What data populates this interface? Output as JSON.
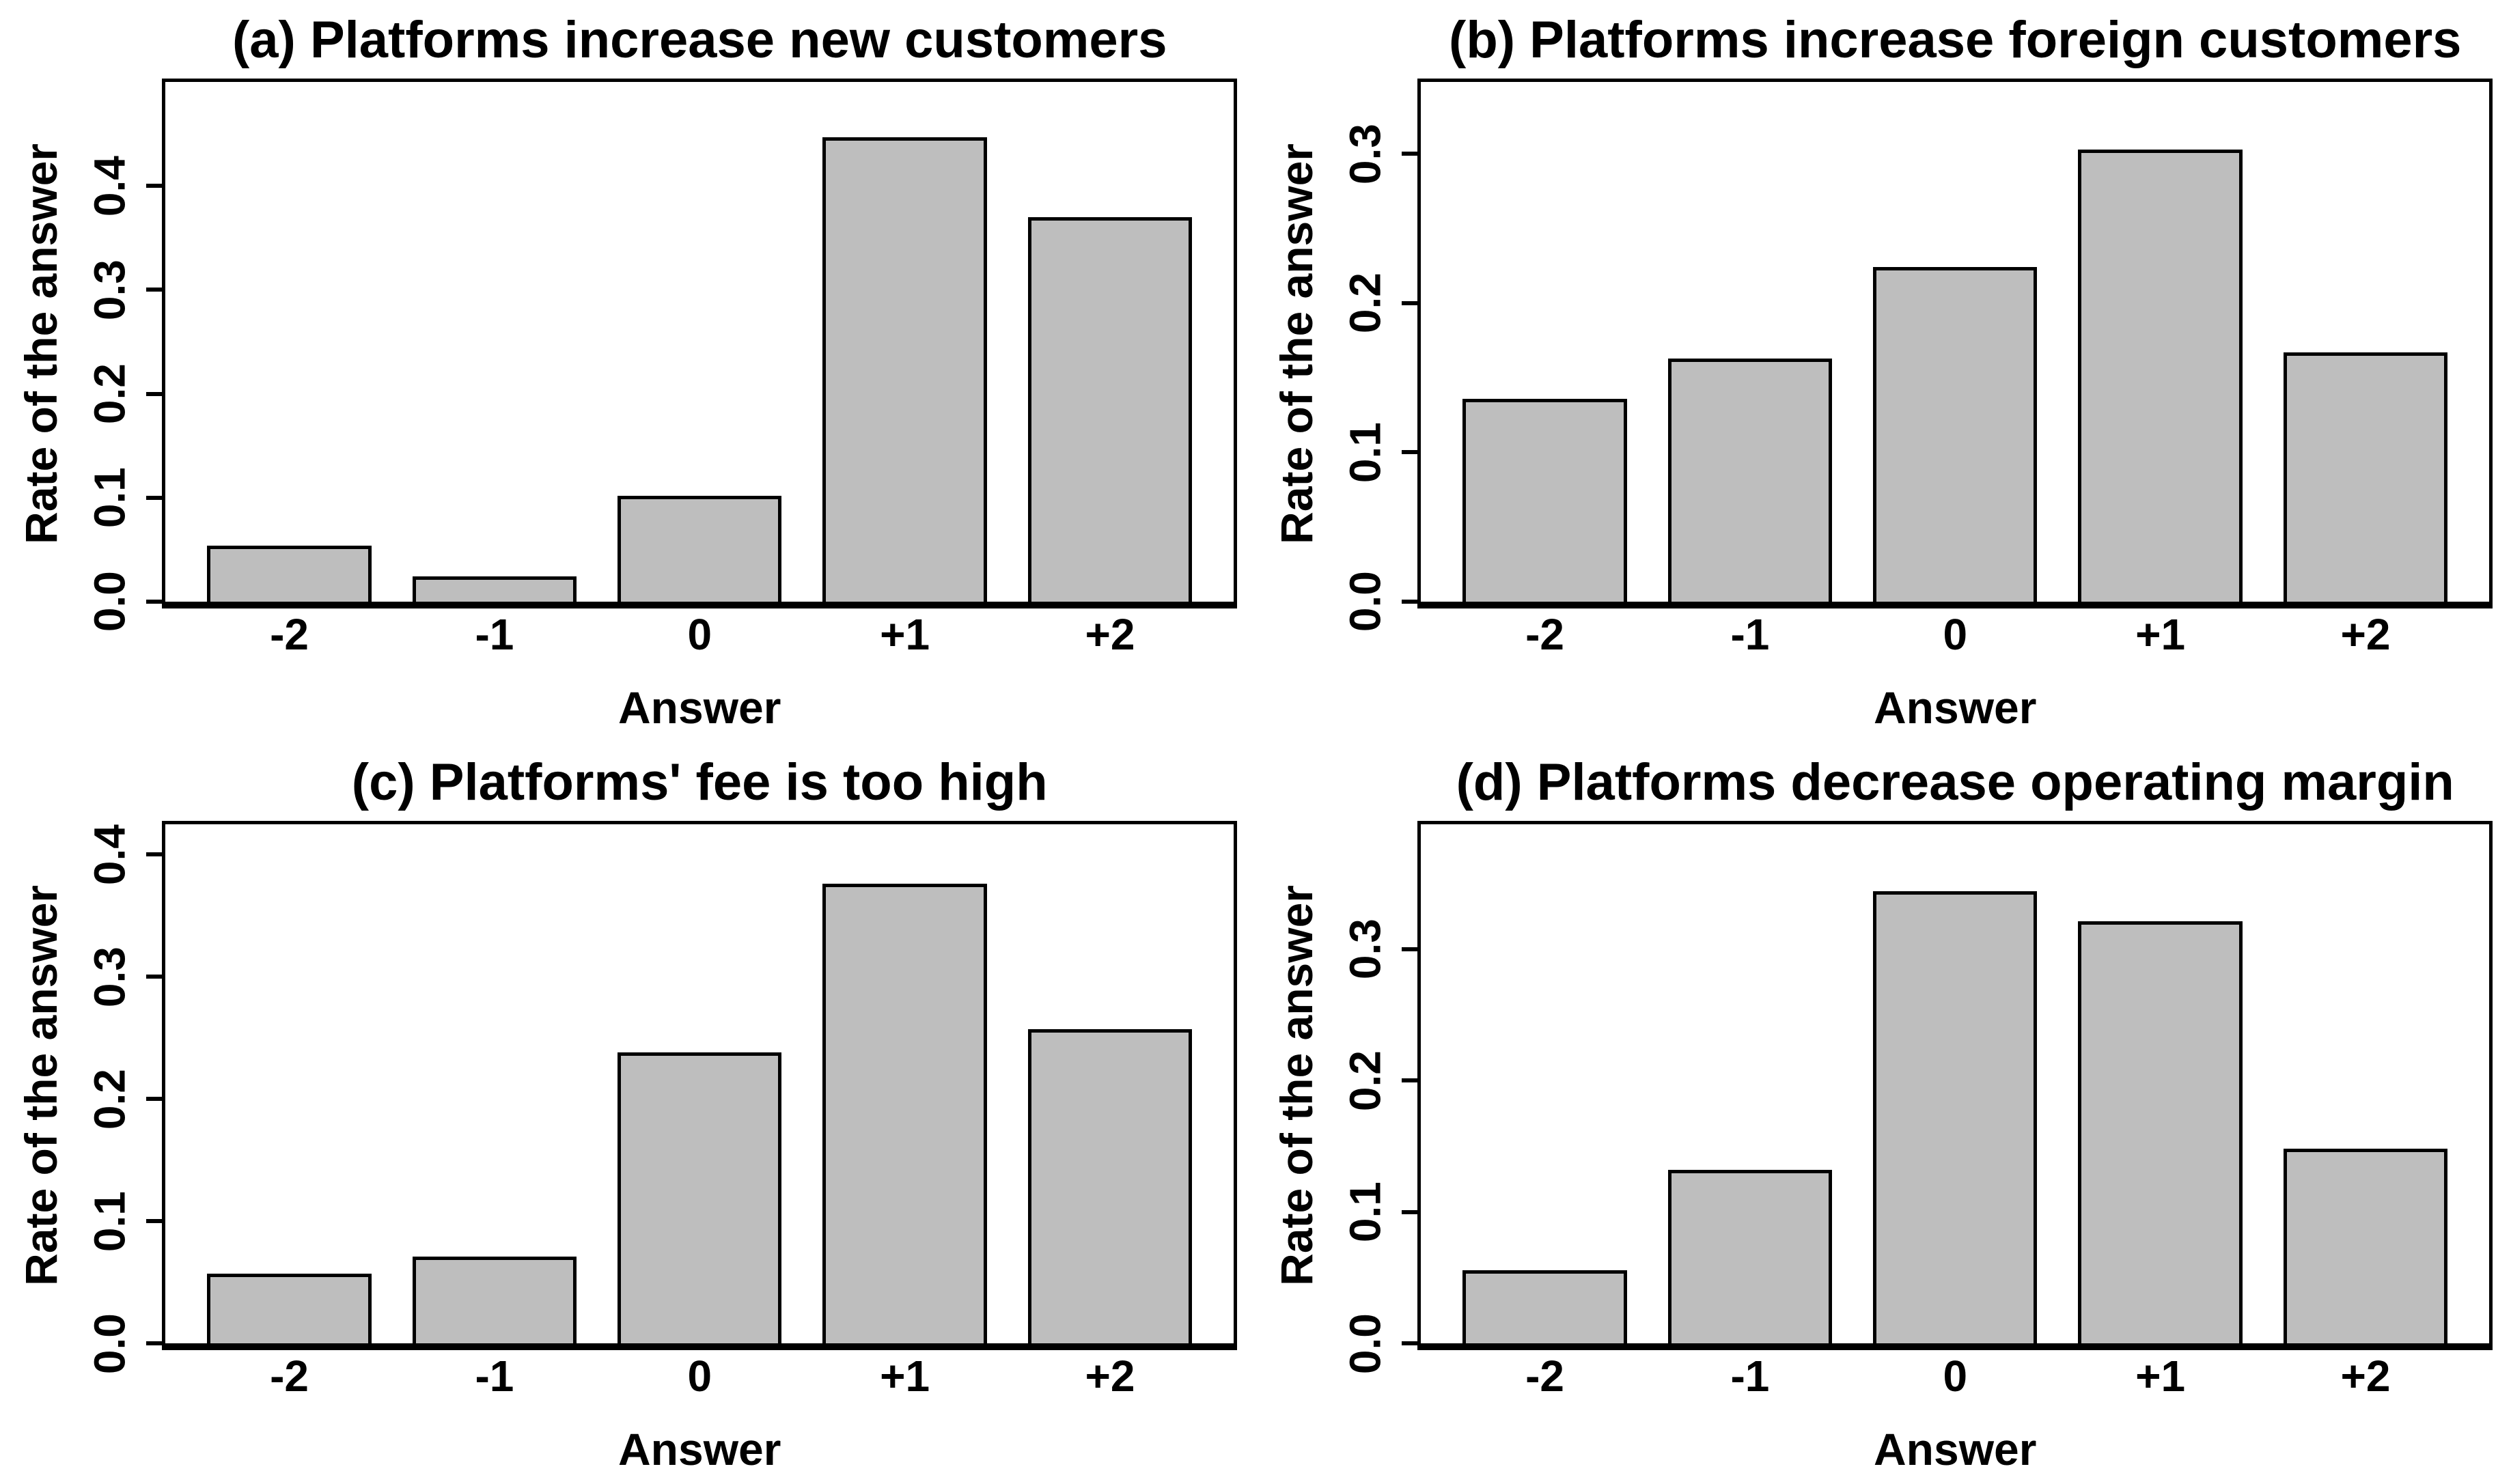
{
  "figure": {
    "background": "#ffffff",
    "text_color": "#000000",
    "bar_fill": "#bebebe",
    "bar_border": "#000000",
    "layout": "2x2-grid",
    "xlabel": "Answer",
    "ylabel": "Rate of the answer",
    "categories": [
      "-2",
      "-1",
      "0",
      "+1",
      "+2"
    ]
  },
  "chart_data": [
    {
      "type": "bar",
      "panel": "a",
      "title": "(a) Platforms increase new customers",
      "xlabel": "Answer",
      "ylabel": "Rate of the answer",
      "categories": [
        "-2",
        "-1",
        "0",
        "+1",
        "+2"
      ],
      "values": [
        0.054,
        0.024,
        0.102,
        0.447,
        0.37
      ],
      "yticks": [
        0,
        0.1,
        0.2,
        0.3,
        0.4
      ],
      "ytick_labels": [
        "0.0",
        "0.1",
        "0.2",
        "0.3",
        "0.4"
      ],
      "ylim": [
        0,
        0.5
      ],
      "grid": false
    },
    {
      "type": "bar",
      "panel": "b",
      "title": "(b) Platforms increase foreign customers",
      "xlabel": "Answer",
      "ylabel": "Rate of the answer",
      "categories": [
        "-2",
        "-1",
        "0",
        "+1",
        "+2"
      ],
      "values": [
        0.136,
        0.163,
        0.224,
        0.303,
        0.167
      ],
      "yticks": [
        0,
        0.1,
        0.2,
        0.3
      ],
      "ytick_labels": [
        "0.0",
        "0.1",
        "0.2",
        "0.3"
      ],
      "ylim": [
        0,
        0.348
      ],
      "grid": false
    },
    {
      "type": "bar",
      "panel": "c",
      "title": "(c) Platforms' fee is too high",
      "xlabel": "Answer",
      "ylabel": "Rate of the answer",
      "categories": [
        "-2",
        "-1",
        "0",
        "+1",
        "+2"
      ],
      "values": [
        0.057,
        0.071,
        0.238,
        0.376,
        0.257
      ],
      "yticks": [
        0,
        0.1,
        0.2,
        0.3,
        0.4
      ],
      "ytick_labels": [
        "0.0",
        "0.1",
        "0.2",
        "0.3",
        "0.4"
      ],
      "ylim": [
        0,
        0.425
      ],
      "grid": false
    },
    {
      "type": "bar",
      "panel": "d",
      "title": "(d) Platforms decrease operating margin",
      "xlabel": "Answer",
      "ylabel": "Rate of the answer",
      "categories": [
        "-2",
        "-1",
        "0",
        "+1",
        "+2"
      ],
      "values": [
        0.056,
        0.132,
        0.344,
        0.321,
        0.148
      ],
      "yticks": [
        0,
        0.1,
        0.2,
        0.3
      ],
      "ytick_labels": [
        "0.0",
        "0.1",
        "0.2",
        "0.3"
      ],
      "ylim": [
        0,
        0.395
      ],
      "grid": false
    }
  ]
}
